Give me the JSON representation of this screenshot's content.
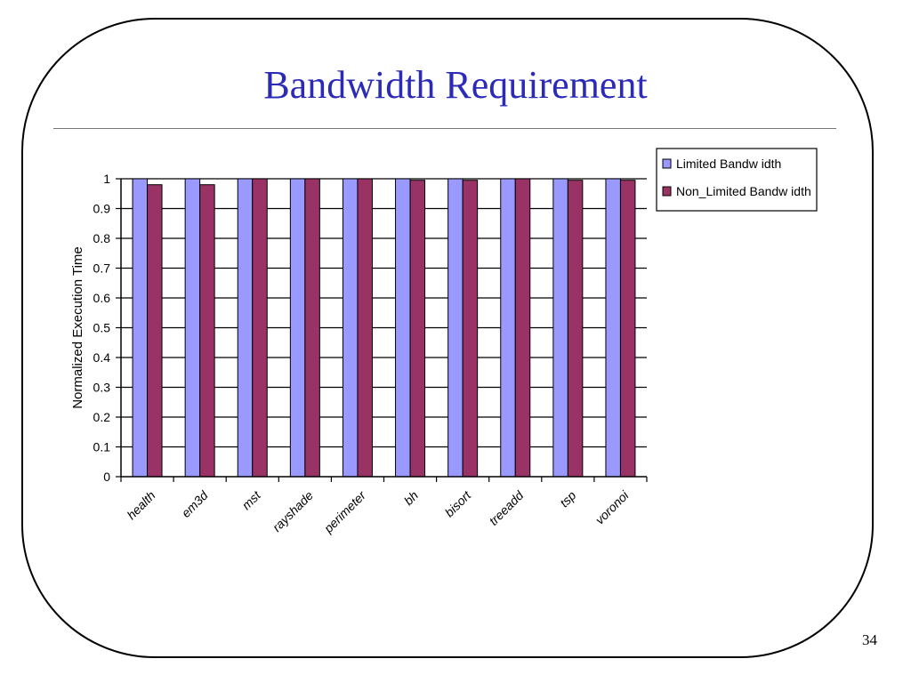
{
  "slide": {
    "title": "Bandwidth Requirement",
    "page_number": "34"
  },
  "colors": {
    "title": "#2b2bb8",
    "series_limited": "#9999ff",
    "series_non_limited": "#993366",
    "grid": "#000000"
  },
  "chart_data": {
    "type": "bar",
    "title": "",
    "xlabel": "",
    "ylabel": "Normalized Execution Time",
    "ylim": [
      0,
      1
    ],
    "yticks": [
      0,
      0.1,
      0.2,
      0.3,
      0.4,
      0.5,
      0.6,
      0.7,
      0.8,
      0.9,
      1
    ],
    "grid": true,
    "legend_position": "top-right",
    "categories": [
      "health",
      "em3d",
      "mst",
      "rayshade",
      "perimeter",
      "bh",
      "bisort",
      "treeadd",
      "tsp",
      "voronoi"
    ],
    "series": [
      {
        "name": "Limited Bandw idth",
        "values": [
          1,
          1,
          1,
          1,
          1,
          1,
          1,
          1,
          1,
          1
        ]
      },
      {
        "name": "Non_Limited Bandw idth",
        "values": [
          0.98,
          0.98,
          1,
          1,
          1,
          0.995,
          0.995,
          1,
          0.995,
          0.995
        ]
      }
    ]
  }
}
